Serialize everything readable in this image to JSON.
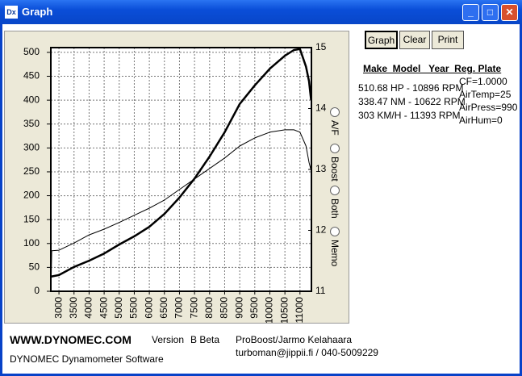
{
  "window": {
    "title": "Graph"
  },
  "toolbar": {
    "buttons": [
      "Graph",
      "Clear",
      "Print"
    ]
  },
  "info": {
    "header": "Make  Model   Year  Reg. Plate",
    "results": [
      "510.68 HP - 10896 RPM",
      "338.47 NM - 10622 RPM",
      "303 KM/H - 11393 RPM"
    ],
    "conditions": [
      "CF=1.0000",
      "AirTemp=25",
      "AirPress=990",
      "AirHum=0"
    ]
  },
  "options": {
    "radios": [
      "A/F",
      "Boost",
      "Both",
      "Memo"
    ]
  },
  "footer": {
    "site": "WWW.DYNOMEC.COM",
    "version_label": "Version",
    "version": "B Beta",
    "author": "ProBoost/Jarmo Kelahaara",
    "product": "DYNOMEC Dynamometer Software",
    "contact": "turboman@jippii.fi / 040-5009229"
  },
  "chart_data": {
    "type": "line",
    "x": [
      2740,
      2760,
      3000,
      3500,
      4000,
      4500,
      5000,
      5500,
      6000,
      6500,
      7000,
      7500,
      8000,
      8500,
      9000,
      9500,
      10000,
      10500,
      10800,
      11000,
      11200,
      11300,
      11370
    ],
    "series": [
      {
        "color": "#000000",
        "values": [
          30,
          31,
          34,
          51,
          64,
          79,
          98,
          115,
          135,
          162,
          196,
          236,
          282,
          333,
          392,
          431,
          466,
          493,
          505,
          507,
          470,
          440,
          400
        ]
      },
      {
        "color": "#000000",
        "values": [
          25,
          85,
          86,
          101,
          118,
          130,
          144,
          159,
          174,
          191,
          213,
          235,
          257,
          279,
          304,
          321,
          333,
          338,
          338,
          333,
          304,
          270,
          253
        ]
      }
    ],
    "xlim": [
      2730,
      11380
    ],
    "xticks": [
      3000,
      3500,
      4000,
      4500,
      5000,
      5500,
      6000,
      6500,
      7000,
      7500,
      8000,
      8500,
      9000,
      9500,
      10000,
      10500,
      11000
    ],
    "ylim": [
      0,
      510
    ],
    "yticks": [
      0,
      50,
      100,
      150,
      200,
      250,
      300,
      350,
      400,
      450,
      500
    ],
    "y2lim": [
      11,
      15
    ],
    "y2ticks": [
      11,
      12,
      13,
      14,
      15
    ],
    "grid": true
  }
}
